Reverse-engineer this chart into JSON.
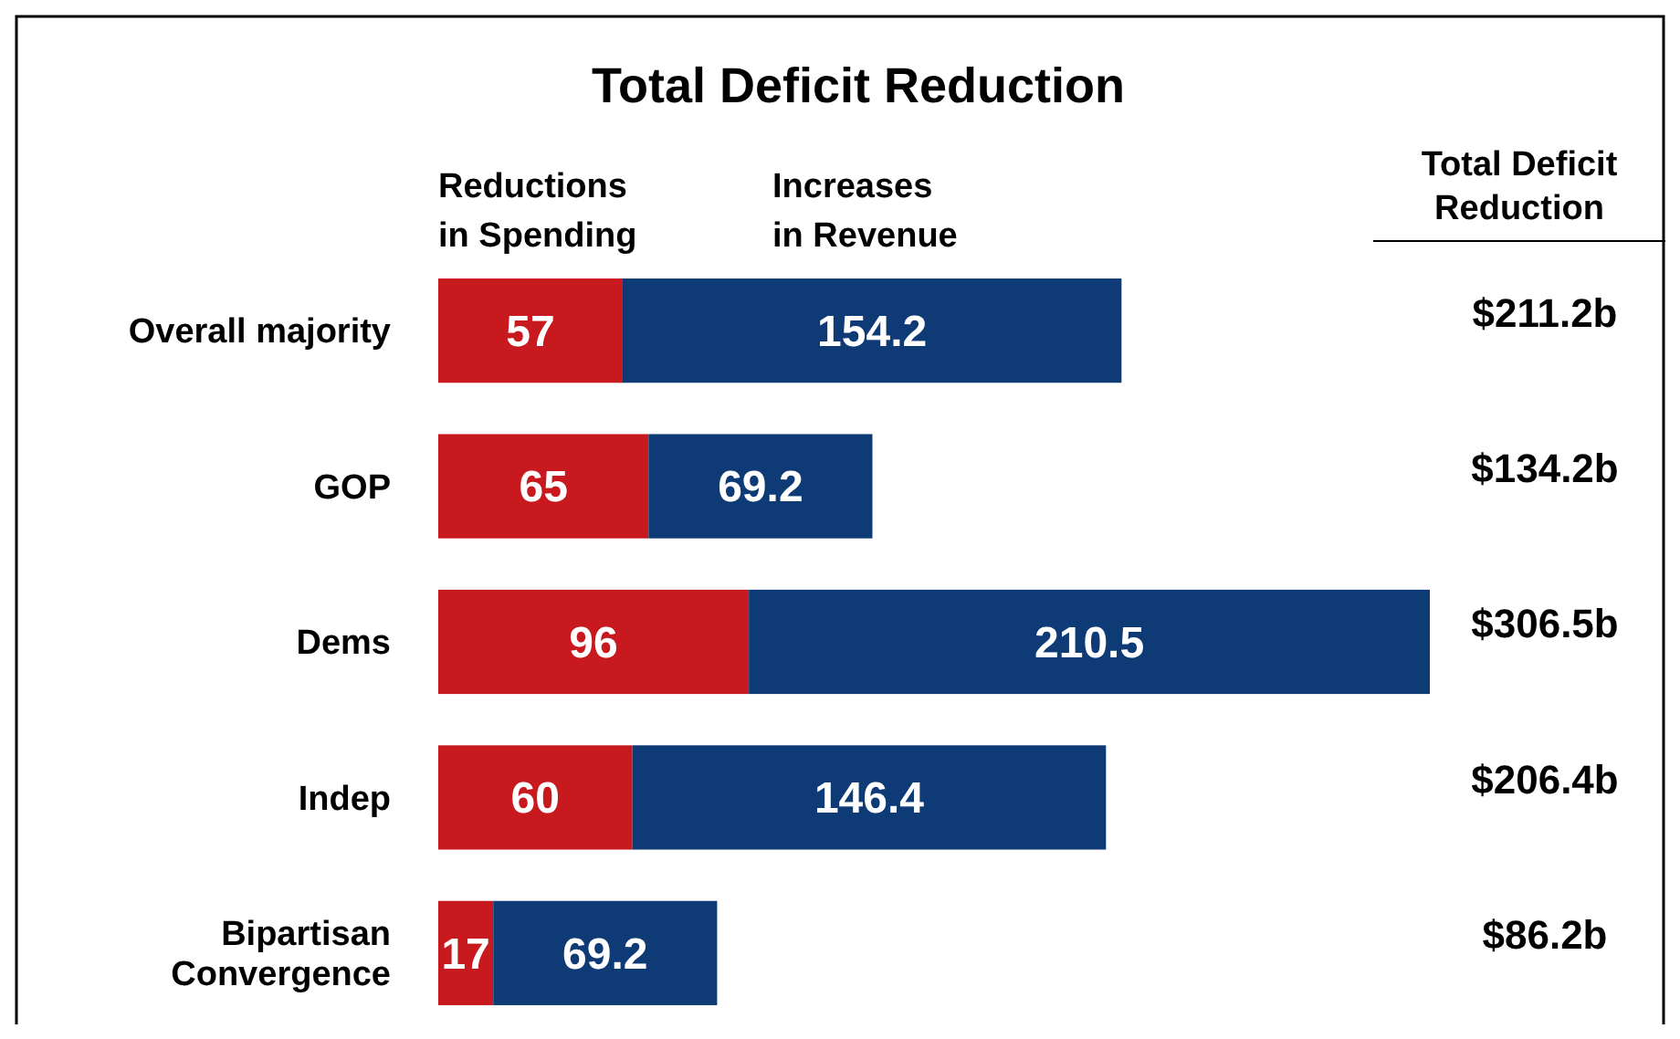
{
  "chart_data": {
    "type": "bar",
    "title": "Total Deficit Reduction",
    "orientation": "horizontal",
    "stacked": true,
    "data_labels": true,
    "legend": "top left",
    "categories": [
      "Overall majority",
      "GOP",
      "Dems",
      "Indep",
      "Bipartisan Convergence"
    ],
    "series": [
      {
        "name": "Reductions in Spending",
        "color": "#c8191f",
        "values": [
          57,
          65,
          96,
          60,
          17
        ]
      },
      {
        "name": "Increases in Revenue",
        "color": "#0e3a75",
        "values": [
          154.2,
          69.2,
          210.5,
          146.4,
          69.2
        ]
      }
    ],
    "annotations": [
      "Total Deficit Reduction",
      "$211.2b",
      "$134.2b",
      "$306.5b",
      "$206.4b",
      "$86.2b"
    ]
  }
}
